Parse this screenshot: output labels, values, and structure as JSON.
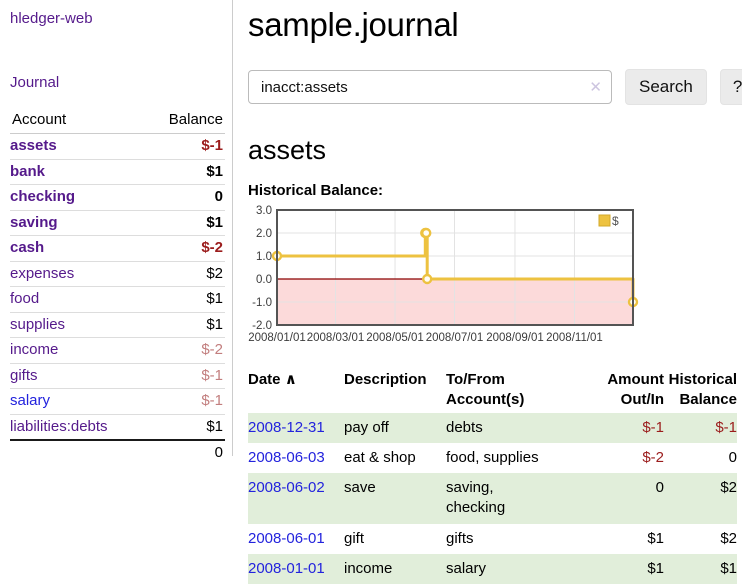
{
  "colors": {
    "link_purple": "#551a8b",
    "link_blue": "#2323dd",
    "neg_strong": "#9b1c1c",
    "neg_soft": "#c27e7e",
    "row_highlight_green": "#e1eeda",
    "chart_line_yellow": "#edc240",
    "chart_zero_line_red": "#8b0000",
    "chart_negative_fill": "#fcdada"
  },
  "sidebar": {
    "app_title": "hledger-web",
    "nav": {
      "journal": "Journal"
    },
    "accounts_table": {
      "headers": {
        "account": "Account",
        "balance": "Balance"
      },
      "rows": [
        {
          "name": "assets",
          "indent": 1,
          "bold": true,
          "balance": "$-1",
          "balance_style": "neg"
        },
        {
          "name": "bank",
          "indent": 2,
          "bold": true,
          "balance": "$1",
          "balance_style": "pos"
        },
        {
          "name": "checking",
          "indent": 3,
          "bold": true,
          "balance": "0",
          "balance_style": "pos"
        },
        {
          "name": "saving",
          "indent": 3,
          "bold": true,
          "balance": "$1",
          "balance_style": "pos"
        },
        {
          "name": "cash",
          "indent": 2,
          "bold": true,
          "balance": "$-2",
          "balance_style": "neg"
        },
        {
          "name": "expenses",
          "indent": 1,
          "bold": false,
          "balance": "$2",
          "balance_style": "pos"
        },
        {
          "name": "food",
          "indent": 2,
          "bold": false,
          "balance": "$1",
          "balance_style": "pos"
        },
        {
          "name": "supplies",
          "indent": 2,
          "bold": false,
          "balance": "$1",
          "balance_style": "pos"
        },
        {
          "name": "income",
          "indent": 1,
          "bold": false,
          "balance": "$-2",
          "balance_style": "neg-soft"
        },
        {
          "name": "gifts",
          "indent": 2,
          "bold": false,
          "balance": "$-1",
          "balance_style": "neg-soft"
        },
        {
          "name": "salary",
          "indent": 2,
          "bold": false,
          "balance": "$-1",
          "balance_style": "neg-soft",
          "link_color": "blue"
        },
        {
          "name": "liabilities:debts",
          "indent": 1,
          "bold": false,
          "balance": "$1",
          "balance_style": "pos"
        }
      ],
      "total": "0"
    }
  },
  "main": {
    "title": "sample.journal",
    "search": {
      "query": "inacct:assets",
      "clear_icon": "✕",
      "button_label": "Search",
      "help_label": "?"
    },
    "account_heading": "assets",
    "chart_heading": "Historical Balance:",
    "register_table": {
      "headers": {
        "date": "Date",
        "sort_icon": "∧",
        "description": "Description",
        "accounts_line1": "To/From",
        "accounts_line2": "Account(s)",
        "amount_line1": "Amount",
        "amount_line2": "Out/In",
        "balance_line1": "Historical",
        "balance_line2": "Balance"
      },
      "rows": [
        {
          "date": "2008-12-31",
          "description": "pay off",
          "accounts": "debts",
          "amount": "$-1",
          "amount_style": "neg",
          "balance": "$-1",
          "balance_style": "neg",
          "highlight": true
        },
        {
          "date": "2008-06-03",
          "description": "eat & shop",
          "accounts": "food, supplies",
          "amount": "$-2",
          "amount_style": "neg",
          "balance": "0",
          "balance_style": "pos",
          "highlight": false
        },
        {
          "date": "2008-06-02",
          "description": "save",
          "accounts": "saving,\nchecking",
          "amount": "0",
          "amount_style": "pos",
          "balance": "$2",
          "balance_style": "pos",
          "highlight": true
        },
        {
          "date": "2008-06-01",
          "description": "gift",
          "accounts": "gifts",
          "amount": "$1",
          "amount_style": "pos",
          "balance": "$2",
          "balance_style": "pos",
          "highlight": false
        },
        {
          "date": "2008-01-01",
          "description": "income",
          "accounts": "salary",
          "amount": "$1",
          "amount_style": "pos",
          "balance": "$1",
          "balance_style": "pos",
          "highlight": true
        }
      ]
    }
  },
  "chart_data": {
    "type": "line",
    "step": true,
    "title": "Historical Balance",
    "series": [
      {
        "name": "$",
        "points": [
          [
            "2008-01-01",
            1
          ],
          [
            "2008-06-01",
            2
          ],
          [
            "2008-06-02",
            2
          ],
          [
            "2008-06-03",
            0
          ],
          [
            "2008-12-31",
            -1
          ]
        ]
      }
    ],
    "x_ticks": [
      "2008/01/01",
      "2008/03/01",
      "2008/05/01",
      "2008/07/01",
      "2008/09/01",
      "2008/11/01"
    ],
    "y_ticks": [
      "3.0",
      "2.0",
      "1.0",
      "0.0",
      "-1.0",
      "-2.0"
    ],
    "ylim": [
      -2,
      3
    ],
    "xlim": [
      "2008-01-01",
      "2008-12-31"
    ],
    "grid": true,
    "legend_position": "top-right",
    "negative_region_shaded": true
  }
}
